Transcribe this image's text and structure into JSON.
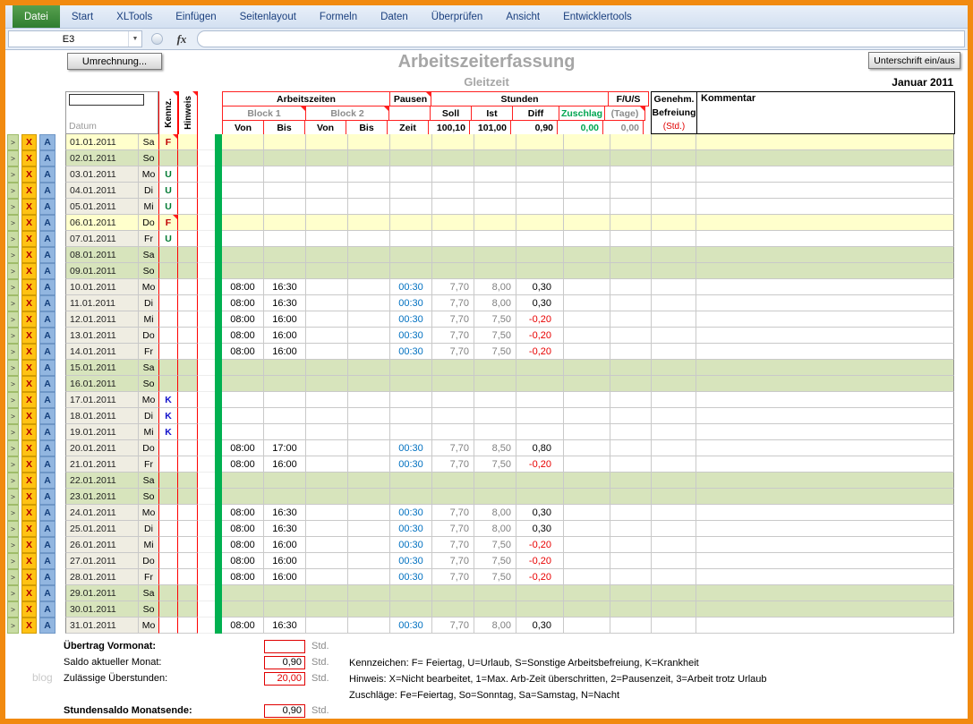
{
  "ribbon": {
    "tabs": [
      {
        "label": "Datei",
        "active": true
      },
      {
        "label": "Start"
      },
      {
        "label": "XLTools"
      },
      {
        "label": "Einfügen"
      },
      {
        "label": "Seitenlayout"
      },
      {
        "label": "Formeln"
      },
      {
        "label": "Daten"
      },
      {
        "label": "Überprüfen"
      },
      {
        "label": "Ansicht"
      },
      {
        "label": "Entwicklertools"
      }
    ]
  },
  "formula_bar": {
    "cell_ref": "E3",
    "fx_label": "fx",
    "formula_value": ""
  },
  "toolbar": {
    "umrechnung_button": "Umrechnung...",
    "unterschrift_button": "Unterschrift ein/aus"
  },
  "sheet_header": {
    "title": "Arbeitszeiterfassung",
    "subtitle": "Gleitzeit",
    "period": "Januar 2011"
  },
  "table": {
    "headers": {
      "datum": "Datum",
      "kennz": "Kennz.",
      "hinweis": "Hinweis",
      "arbeitszeiten": "Arbeitszeiten",
      "block1": "Block 1",
      "block2": "Block 2",
      "von": "Von",
      "bis": "Bis",
      "pausen": "Pausen",
      "zeit": "Zeit",
      "stunden": "Stunden",
      "soll": "Soll",
      "ist": "Ist",
      "diff": "Diff",
      "zuschlag": "Zuschlag",
      "fus": "F/U/S",
      "tage": "(Tage)",
      "genehm": "Genehm.",
      "befreiung": "Befreiung",
      "std": "(Std.)",
      "kommentar": "Kommentar"
    },
    "totals": {
      "soll": "100,10",
      "ist": "101,00",
      "diff": "0,90",
      "zuschlag": "0,00",
      "tage": "0,00"
    },
    "row_buttons": {
      "go": ">",
      "x": "X",
      "a": "A"
    },
    "kennz_colors": {
      "F": "#C00000",
      "U": "#007A33",
      "K": "#1414CC"
    },
    "rows": [
      {
        "date": "01.01.2011",
        "day": "Sa",
        "kennz": "F",
        "type": "holiday",
        "marker": true
      },
      {
        "date": "02.01.2011",
        "day": "So",
        "type": "weekend"
      },
      {
        "date": "03.01.2011",
        "day": "Mo",
        "kennz": "U",
        "type": "normal"
      },
      {
        "date": "04.01.2011",
        "day": "Di",
        "kennz": "U",
        "type": "normal"
      },
      {
        "date": "05.01.2011",
        "day": "Mi",
        "kennz": "U",
        "type": "normal"
      },
      {
        "date": "06.01.2011",
        "day": "Do",
        "kennz": "F",
        "type": "holiday",
        "marker": true
      },
      {
        "date": "07.01.2011",
        "day": "Fr",
        "kennz": "U",
        "type": "normal"
      },
      {
        "date": "08.01.2011",
        "day": "Sa",
        "type": "weekend"
      },
      {
        "date": "09.01.2011",
        "day": "So",
        "type": "weekend"
      },
      {
        "date": "10.01.2011",
        "day": "Mo",
        "von1": "08:00",
        "bis1": "16:30",
        "pause": "00:30",
        "soll": "7,70",
        "ist": "8,00",
        "diff": "0,30",
        "type": "normal"
      },
      {
        "date": "11.01.2011",
        "day": "Di",
        "von1": "08:00",
        "bis1": "16:30",
        "pause": "00:30",
        "soll": "7,70",
        "ist": "8,00",
        "diff": "0,30",
        "type": "normal"
      },
      {
        "date": "12.01.2011",
        "day": "Mi",
        "von1": "08:00",
        "bis1": "16:00",
        "pause": "00:30",
        "soll": "7,70",
        "ist": "7,50",
        "diff": "-0,20",
        "type": "normal"
      },
      {
        "date": "13.01.2011",
        "day": "Do",
        "von1": "08:00",
        "bis1": "16:00",
        "pause": "00:30",
        "soll": "7,70",
        "ist": "7,50",
        "diff": "-0,20",
        "type": "normal"
      },
      {
        "date": "14.01.2011",
        "day": "Fr",
        "von1": "08:00",
        "bis1": "16:00",
        "pause": "00:30",
        "soll": "7,70",
        "ist": "7,50",
        "diff": "-0,20",
        "type": "normal"
      },
      {
        "date": "15.01.2011",
        "day": "Sa",
        "type": "weekend"
      },
      {
        "date": "16.01.2011",
        "day": "So",
        "type": "weekend"
      },
      {
        "date": "17.01.2011",
        "day": "Mo",
        "kennz": "K",
        "type": "normal"
      },
      {
        "date": "18.01.2011",
        "day": "Di",
        "kennz": "K",
        "type": "normal"
      },
      {
        "date": "19.01.2011",
        "day": "Mi",
        "kennz": "K",
        "type": "normal"
      },
      {
        "date": "20.01.2011",
        "day": "Do",
        "von1": "08:00",
        "bis1": "17:00",
        "pause": "00:30",
        "soll": "7,70",
        "ist": "8,50",
        "diff": "0,80",
        "type": "normal"
      },
      {
        "date": "21.01.2011",
        "day": "Fr",
        "von1": "08:00",
        "bis1": "16:00",
        "pause": "00:30",
        "soll": "7,70",
        "ist": "7,50",
        "diff": "-0,20",
        "type": "normal"
      },
      {
        "date": "22.01.2011",
        "day": "Sa",
        "type": "weekend"
      },
      {
        "date": "23.01.2011",
        "day": "So",
        "type": "weekend"
      },
      {
        "date": "24.01.2011",
        "day": "Mo",
        "von1": "08:00",
        "bis1": "16:30",
        "pause": "00:30",
        "soll": "7,70",
        "ist": "8,00",
        "diff": "0,30",
        "type": "normal"
      },
      {
        "date": "25.01.2011",
        "day": "Di",
        "von1": "08:00",
        "bis1": "16:30",
        "pause": "00:30",
        "soll": "7,70",
        "ist": "8,00",
        "diff": "0,30",
        "type": "normal"
      },
      {
        "date": "26.01.2011",
        "day": "Mi",
        "von1": "08:00",
        "bis1": "16:00",
        "pause": "00:30",
        "soll": "7,70",
        "ist": "7,50",
        "diff": "-0,20",
        "type": "normal"
      },
      {
        "date": "27.01.2011",
        "day": "Do",
        "von1": "08:00",
        "bis1": "16:00",
        "pause": "00:30",
        "soll": "7,70",
        "ist": "7,50",
        "diff": "-0,20",
        "type": "normal"
      },
      {
        "date": "28.01.2011",
        "day": "Fr",
        "von1": "08:00",
        "bis1": "16:00",
        "pause": "00:30",
        "soll": "7,70",
        "ist": "7,50",
        "diff": "-0,20",
        "type": "normal"
      },
      {
        "date": "29.01.2011",
        "day": "Sa",
        "type": "weekend"
      },
      {
        "date": "30.01.2011",
        "day": "So",
        "type": "weekend"
      },
      {
        "date": "31.01.2011",
        "day": "Mo",
        "von1": "08:00",
        "bis1": "16:30",
        "pause": "00:30",
        "soll": "7,70",
        "ist": "8,00",
        "diff": "0,30",
        "type": "normal"
      }
    ]
  },
  "footer": {
    "uebertrag_label": "Übertrag Vormonat:",
    "uebertrag_value": "",
    "saldo_label": "Saldo aktueller Monat:",
    "saldo_value": "0,90",
    "ueberstunden_label": "Zulässige Überstunden:",
    "ueberstunden_value": "20,00",
    "monatsende_label": "Stundensaldo Monatsende:",
    "monatsende_value": "0,90",
    "unit": "Std.",
    "legend": [
      "Kennzeichen: F= Feiertag, U=Urlaub, S=Sonstige Arbeitsbefreiung, K=Krankheit",
      "Hinweis: X=Nicht bearbeitet, 1=Max. Arb-Zeit überschritten, 2=Pausenzeit, 3=Arbeit trotz Urlaub",
      "Zuschläge: Fe=Feiertag, So=Sonntag, Sa=Samstag, N=Nacht"
    ],
    "watermark": "blog"
  },
  "colors": {
    "frame_orange": "#F18A10",
    "weekend_row": "#D7E4BC",
    "holiday_row": "#FFFFCC",
    "workday_date": "#EFEDE2",
    "status_bar": "#00B050",
    "negative": "#E80000",
    "pause_text": "#0070C0"
  }
}
